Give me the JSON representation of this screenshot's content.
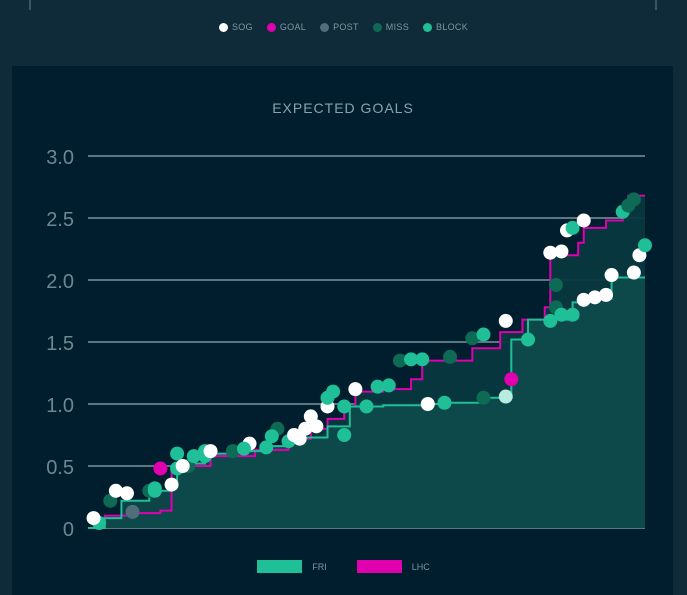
{
  "legend_top": [
    {
      "label": "SOG",
      "color": "#ffffff"
    },
    {
      "label": "GOAL",
      "color": "#e000b0"
    },
    {
      "label": "POST",
      "color": "#4f6d7b"
    },
    {
      "label": "MISS",
      "color": "#0d6b55"
    },
    {
      "label": "BLOCK",
      "color": "#1fbf98"
    }
  ],
  "colors": {
    "fri_line": "#1fbf98",
    "fri_fill": "#0e4b4c",
    "lhc_line": "#e000b0",
    "lhc_fill": "#07383f",
    "grid": "#5d7684",
    "axis_text": "#6d8793",
    "title_text": "#8aa2ae",
    "sog": "#ffffff",
    "goal": "#e000b0",
    "post": "#4f6d7b",
    "miss": "#0d6b55",
    "block": "#1fbf98",
    "block_light": "#b9ece0"
  },
  "chart_data": {
    "type": "line",
    "title": "EXPECTED GOALS",
    "xlabel": "",
    "ylabel": "",
    "ylim": [
      0,
      3.0
    ],
    "xlim": [
      0,
      100
    ],
    "yticks": [
      0,
      0.5,
      1.0,
      1.5,
      2.0,
      2.5,
      3.0
    ],
    "ytick_labels": [
      "0",
      "0.5",
      "1.0",
      "1.5",
      "2.0",
      "2.5",
      "3.0"
    ],
    "grid": true,
    "legend": [
      {
        "name": "FRI",
        "color": "#1fbf98"
      },
      {
        "name": "LHC",
        "color": "#e000b0"
      }
    ],
    "series": [
      {
        "name": "FRI",
        "steps": [
          [
            0,
            0
          ],
          [
            3,
            0.08
          ],
          [
            6,
            0.22
          ],
          [
            11,
            0.3
          ],
          [
            15,
            0.38
          ],
          [
            16,
            0.48
          ],
          [
            18,
            0.52
          ],
          [
            21,
            0.6
          ],
          [
            25,
            0.62
          ],
          [
            31,
            0.66
          ],
          [
            36,
            0.7
          ],
          [
            39,
            0.73
          ],
          [
            43,
            0.82
          ],
          [
            47,
            0.98
          ],
          [
            53,
            0.99
          ],
          [
            61,
            1.0
          ],
          [
            64,
            1.01
          ],
          [
            71,
            1.05
          ],
          [
            76,
            1.52
          ],
          [
            79,
            1.68
          ],
          [
            87,
            1.82
          ],
          [
            90,
            1.85
          ],
          [
            94,
            2.02
          ],
          [
            100,
            2.02
          ]
        ],
        "events": [
          {
            "x": 2,
            "y": 0.04,
            "t": "block"
          },
          {
            "x": 4,
            "y": 0.22,
            "t": "miss"
          },
          {
            "x": 7,
            "y": 0.28,
            "t": "sog"
          },
          {
            "x": 11,
            "y": 0.3,
            "t": "miss"
          },
          {
            "x": 12,
            "y": 0.32,
            "t": "block"
          },
          {
            "x": 15,
            "y": 0.35,
            "t": "sog"
          },
          {
            "x": 16,
            "y": 0.48,
            "t": "block"
          },
          {
            "x": 18,
            "y": 0.5,
            "t": "miss"
          },
          {
            "x": 19,
            "y": 0.58,
            "t": "block"
          },
          {
            "x": 21,
            "y": 0.62,
            "t": "block"
          },
          {
            "x": 26,
            "y": 0.62,
            "t": "miss"
          },
          {
            "x": 29,
            "y": 0.68,
            "t": "sog"
          },
          {
            "x": 32,
            "y": 0.65,
            "t": "block"
          },
          {
            "x": 34,
            "y": 0.8,
            "t": "miss"
          },
          {
            "x": 36,
            "y": 0.7,
            "t": "block"
          },
          {
            "x": 38,
            "y": 0.72,
            "t": "sog"
          },
          {
            "x": 41,
            "y": 0.82,
            "t": "sog"
          },
          {
            "x": 43,
            "y": 0.98,
            "t": "sog"
          },
          {
            "x": 44,
            "y": 1.1,
            "t": "block"
          },
          {
            "x": 46,
            "y": 0.75,
            "t": "block"
          },
          {
            "x": 46,
            "y": 0.98,
            "t": "block"
          },
          {
            "x": 50,
            "y": 0.98,
            "t": "block"
          },
          {
            "x": 61,
            "y": 1.0,
            "t": "sog"
          },
          {
            "x": 64,
            "y": 1.01,
            "t": "block"
          },
          {
            "x": 71,
            "y": 1.05,
            "t": "miss"
          },
          {
            "x": 75,
            "y": 1.06,
            "t": "block_light"
          },
          {
            "x": 79,
            "y": 1.52,
            "t": "block"
          },
          {
            "x": 83,
            "y": 1.67,
            "t": "block"
          },
          {
            "x": 84,
            "y": 1.78,
            "t": "miss"
          },
          {
            "x": 84,
            "y": 1.96,
            "t": "miss"
          },
          {
            "x": 85,
            "y": 1.72,
            "t": "block"
          },
          {
            "x": 87,
            "y": 1.72,
            "t": "block"
          },
          {
            "x": 89,
            "y": 1.84,
            "t": "sog"
          },
          {
            "x": 91,
            "y": 1.86,
            "t": "sog"
          },
          {
            "x": 93,
            "y": 1.88,
            "t": "sog"
          },
          {
            "x": 94,
            "y": 2.04,
            "t": "sog"
          },
          {
            "x": 98,
            "y": 2.06,
            "t": "sog"
          },
          {
            "x": 99,
            "y": 2.2,
            "t": "sog"
          },
          {
            "x": 100,
            "y": 2.28,
            "t": "block"
          }
        ]
      },
      {
        "name": "LHC",
        "steps": [
          [
            0,
            0
          ],
          [
            3,
            0.1
          ],
          [
            8,
            0.12
          ],
          [
            13,
            0.14
          ],
          [
            15,
            0.5
          ],
          [
            22,
            0.58
          ],
          [
            30,
            0.63
          ],
          [
            36,
            0.72
          ],
          [
            40,
            0.8
          ],
          [
            43,
            0.88
          ],
          [
            46,
            0.98
          ],
          [
            48,
            1.1
          ],
          [
            53,
            1.12
          ],
          [
            58,
            1.2
          ],
          [
            60,
            1.35
          ],
          [
            69,
            1.45
          ],
          [
            74,
            1.58
          ],
          [
            78,
            1.68
          ],
          [
            82,
            1.78
          ],
          [
            83,
            2.2
          ],
          [
            88,
            2.3
          ],
          [
            89,
            2.42
          ],
          [
            93,
            2.48
          ],
          [
            96,
            2.6
          ],
          [
            97,
            2.68
          ],
          [
            100,
            2.68
          ]
        ],
        "events": [
          {
            "x": 1,
            "y": 0.08,
            "t": "sog"
          },
          {
            "x": 5,
            "y": 0.3,
            "t": "sog"
          },
          {
            "x": 8,
            "y": 0.13,
            "t": "post"
          },
          {
            "x": 12,
            "y": 0.3,
            "t": "block"
          },
          {
            "x": 13,
            "y": 0.48,
            "t": "goal"
          },
          {
            "x": 16,
            "y": 0.6,
            "t": "block"
          },
          {
            "x": 17,
            "y": 0.5,
            "t": "sog"
          },
          {
            "x": 21,
            "y": 0.58,
            "t": "block"
          },
          {
            "x": 22,
            "y": 0.62,
            "t": "sog"
          },
          {
            "x": 28,
            "y": 0.64,
            "t": "block"
          },
          {
            "x": 33,
            "y": 0.74,
            "t": "block"
          },
          {
            "x": 37,
            "y": 0.75,
            "t": "sog"
          },
          {
            "x": 39,
            "y": 0.8,
            "t": "sog"
          },
          {
            "x": 40,
            "y": 0.9,
            "t": "sog"
          },
          {
            "x": 43,
            "y": 1.05,
            "t": "block"
          },
          {
            "x": 48,
            "y": 1.12,
            "t": "sog"
          },
          {
            "x": 52,
            "y": 1.14,
            "t": "block"
          },
          {
            "x": 54,
            "y": 1.15,
            "t": "block"
          },
          {
            "x": 56,
            "y": 1.35,
            "t": "miss"
          },
          {
            "x": 58,
            "y": 1.36,
            "t": "block"
          },
          {
            "x": 60,
            "y": 1.36,
            "t": "block"
          },
          {
            "x": 65,
            "y": 1.38,
            "t": "miss"
          },
          {
            "x": 69,
            "y": 1.53,
            "t": "miss"
          },
          {
            "x": 71,
            "y": 1.56,
            "t": "block"
          },
          {
            "x": 75,
            "y": 1.67,
            "t": "sog"
          },
          {
            "x": 76,
            "y": 1.2,
            "t": "goal"
          },
          {
            "x": 83,
            "y": 2.22,
            "t": "sog"
          },
          {
            "x": 85,
            "y": 2.23,
            "t": "sog"
          },
          {
            "x": 86,
            "y": 2.4,
            "t": "sog"
          },
          {
            "x": 87,
            "y": 2.42,
            "t": "block"
          },
          {
            "x": 89,
            "y": 2.48,
            "t": "sog"
          },
          {
            "x": 96,
            "y": 2.55,
            "t": "block"
          },
          {
            "x": 97,
            "y": 2.6,
            "t": "miss"
          },
          {
            "x": 98,
            "y": 2.65,
            "t": "miss"
          }
        ]
      }
    ]
  }
}
